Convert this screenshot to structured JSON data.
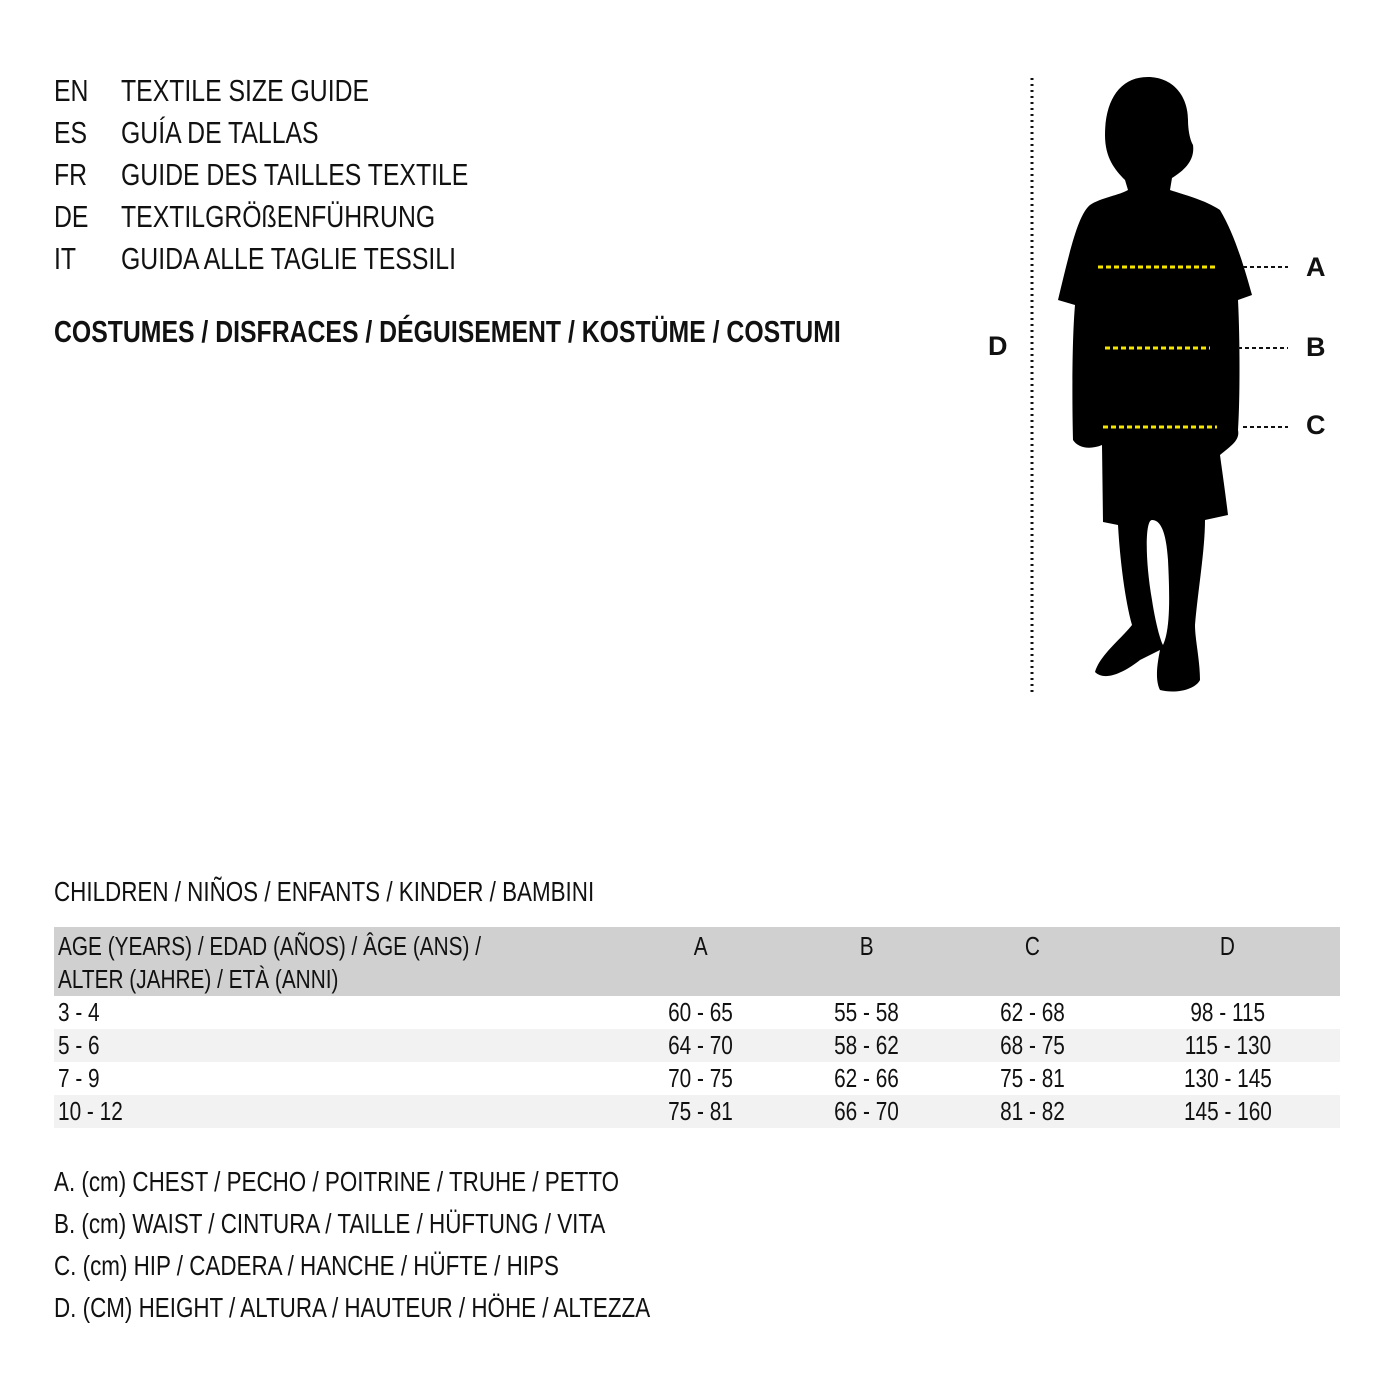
{
  "header": {
    "languages": [
      {
        "code": "EN",
        "title": "TEXTILE SIZE GUIDE"
      },
      {
        "code": "ES",
        "title": "GUÍA DE TALLAS"
      },
      {
        "code": "FR",
        "title": "GUIDE DES TAILLES TEXTILE"
      },
      {
        "code": "DE",
        "title": "TEXTILGRÖßENFÜHRUNG"
      },
      {
        "code": "IT",
        "title": "GUIDA ALLE TAGLIE TESSILI"
      }
    ],
    "subtitle": "COSTUMES / DISFRACES / DÉGUISEMENT / KOSTÜME / COSTUMI"
  },
  "figure": {
    "labels": {
      "a": "A",
      "b": "B",
      "c": "C",
      "d": "D"
    },
    "marker_color": "#f5e400"
  },
  "section_title": "CHILDREN / NIÑOS / ENFANTS / KINDER / BAMBINI",
  "table": {
    "header": {
      "age_line1": "AGE (YEARS) / EDAD (AÑOS) / ÂGE (ANS) /",
      "age_line2": "ALTER (JAHRE) / ETÀ (ANNI)",
      "cols": [
        "A",
        "B",
        "C",
        "D"
      ]
    },
    "rows": [
      [
        "3 - 4",
        "60 - 65",
        "55 - 58",
        "62 - 68",
        "98 - 115"
      ],
      [
        "5 - 6",
        "64 - 70",
        "58 - 62",
        "68 - 75",
        "115 - 130"
      ],
      [
        "7 - 9",
        "70 - 75",
        "62 - 66",
        "75 - 81",
        "130 - 145"
      ],
      [
        "10 - 12",
        "75 - 81",
        "66 - 70",
        "81 - 82",
        "145 - 160"
      ]
    ]
  },
  "legend": [
    "A. (cm) CHEST / PECHO / POITRINE / TRUHE / PETTO",
    "B. (cm) WAIST / CINTURA / TAILLE / HÜFTUNG / VITA",
    "C. (cm) HIP / CADERA / HANCHE / HÜFTE / HIPS",
    "D. (CM) HEIGHT / ALTURA / HAUTEUR / HÖHE / ALTEZZA"
  ]
}
